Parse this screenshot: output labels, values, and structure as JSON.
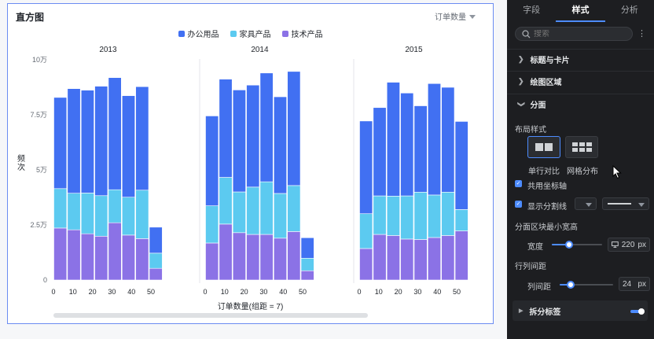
{
  "chart_card": {
    "title": "直方图",
    "field_select": "订单数量",
    "y_title": "频次",
    "x_title": "订单数量(组距 = 7)"
  },
  "panel": {
    "tabs": [
      {
        "label": "字段"
      },
      {
        "label": "样式",
        "active": true
      },
      {
        "label": "分析"
      }
    ],
    "search_placeholder": "搜索",
    "sections": {
      "title_card": "标题与卡片",
      "plot_area": "绘图区域",
      "facet": "分面",
      "split_label": "拆分标签"
    },
    "layout_style_label": "布局样式",
    "layout_options": [
      {
        "label": "单行对比",
        "selected": true
      },
      {
        "label": "网格分布",
        "selected": false
      }
    ],
    "share_axis": {
      "label": "共用坐标轴",
      "checked": true
    },
    "show_divider": {
      "label": "显示分割线",
      "checked": true
    },
    "min_width_label": "分面区块最小宽高",
    "width": {
      "label": "宽度",
      "value": "220",
      "unit": "px",
      "slider_fraction": 0.35
    },
    "spacing_label": "行列间距",
    "col_spacing": {
      "label": "列间距",
      "value": "24",
      "unit": "px",
      "slider_fraction": 0.2
    },
    "split_label_toggle_on": true,
    "icons": [
      "search-icon",
      "more-icon",
      "chevron-right-icon",
      "chevron-down-icon",
      "check-icon",
      "monitor-icon",
      "caret-down-icon",
      "pointer-cursor-icon"
    ]
  },
  "chart_data": {
    "type": "bar",
    "subtype": "stacked histogram, faceted by year",
    "title": "直方图",
    "xlabel": "订单数量(组距 = 7)",
    "ylabel": "频次",
    "ylim": [
      0,
      100000
    ],
    "yticks": [
      "0",
      "2.5万",
      "5万",
      "7.5万",
      "10万"
    ],
    "ytick_values": [
      0,
      25000,
      50000,
      75000,
      100000
    ],
    "xticks": [
      0,
      10,
      20,
      30,
      40,
      50
    ],
    "xlim": [
      0,
      56
    ],
    "bin_width": 7,
    "bins": [
      0,
      7,
      14,
      21,
      28,
      35,
      42,
      49
    ],
    "legend": [
      "办公用品",
      "家具产品",
      "技术产品"
    ],
    "legend_position": "top",
    "colors": {
      "办公用品": "#4170f2",
      "家具产品": "#5ccaf0",
      "技术产品": "#8b72e6"
    },
    "facets": [
      {
        "name": "2013",
        "series": [
          {
            "name": "技术产品",
            "values": [
              23600,
              22800,
              21000,
              19900,
              26000,
              20400,
              18800,
              5300
            ]
          },
          {
            "name": "家具产品",
            "values": [
              17900,
              16600,
              18500,
              18400,
              15000,
              17200,
              22000,
              6900
            ]
          },
          {
            "name": "办公用品",
            "values": [
              41400,
              47500,
              46700,
              49700,
              50900,
              46100,
              47000,
              11800
            ]
          }
        ]
      },
      {
        "name": "2014",
        "series": [
          {
            "name": "技术产品",
            "values": [
              16800,
              25400,
              21500,
              20700,
              20700,
              19000,
              22000,
              4200
            ]
          },
          {
            "name": "家具产品",
            "values": [
              16900,
              21200,
              18500,
              21500,
              23900,
              20300,
              20900,
              5700
            ]
          },
          {
            "name": "办公用品",
            "values": [
              40800,
              44600,
              46300,
              46300,
              49400,
              43900,
              51800,
              9300
            ]
          }
        ]
      },
      {
        "name": "2015",
        "series": [
          {
            "name": "技术产品",
            "values": [
              14300,
              20700,
              20200,
              18600,
              18400,
              19300,
              20200,
              22300
            ]
          },
          {
            "name": "家具产品",
            "values": [
              15800,
              17500,
              17900,
              19600,
              21500,
              19300,
              19700,
              9700
            ]
          },
          {
            "name": "办公用品",
            "values": [
              42100,
              40100,
              51700,
              46700,
              39200,
              50600,
              47600,
              40000
            ]
          }
        ]
      }
    ]
  }
}
